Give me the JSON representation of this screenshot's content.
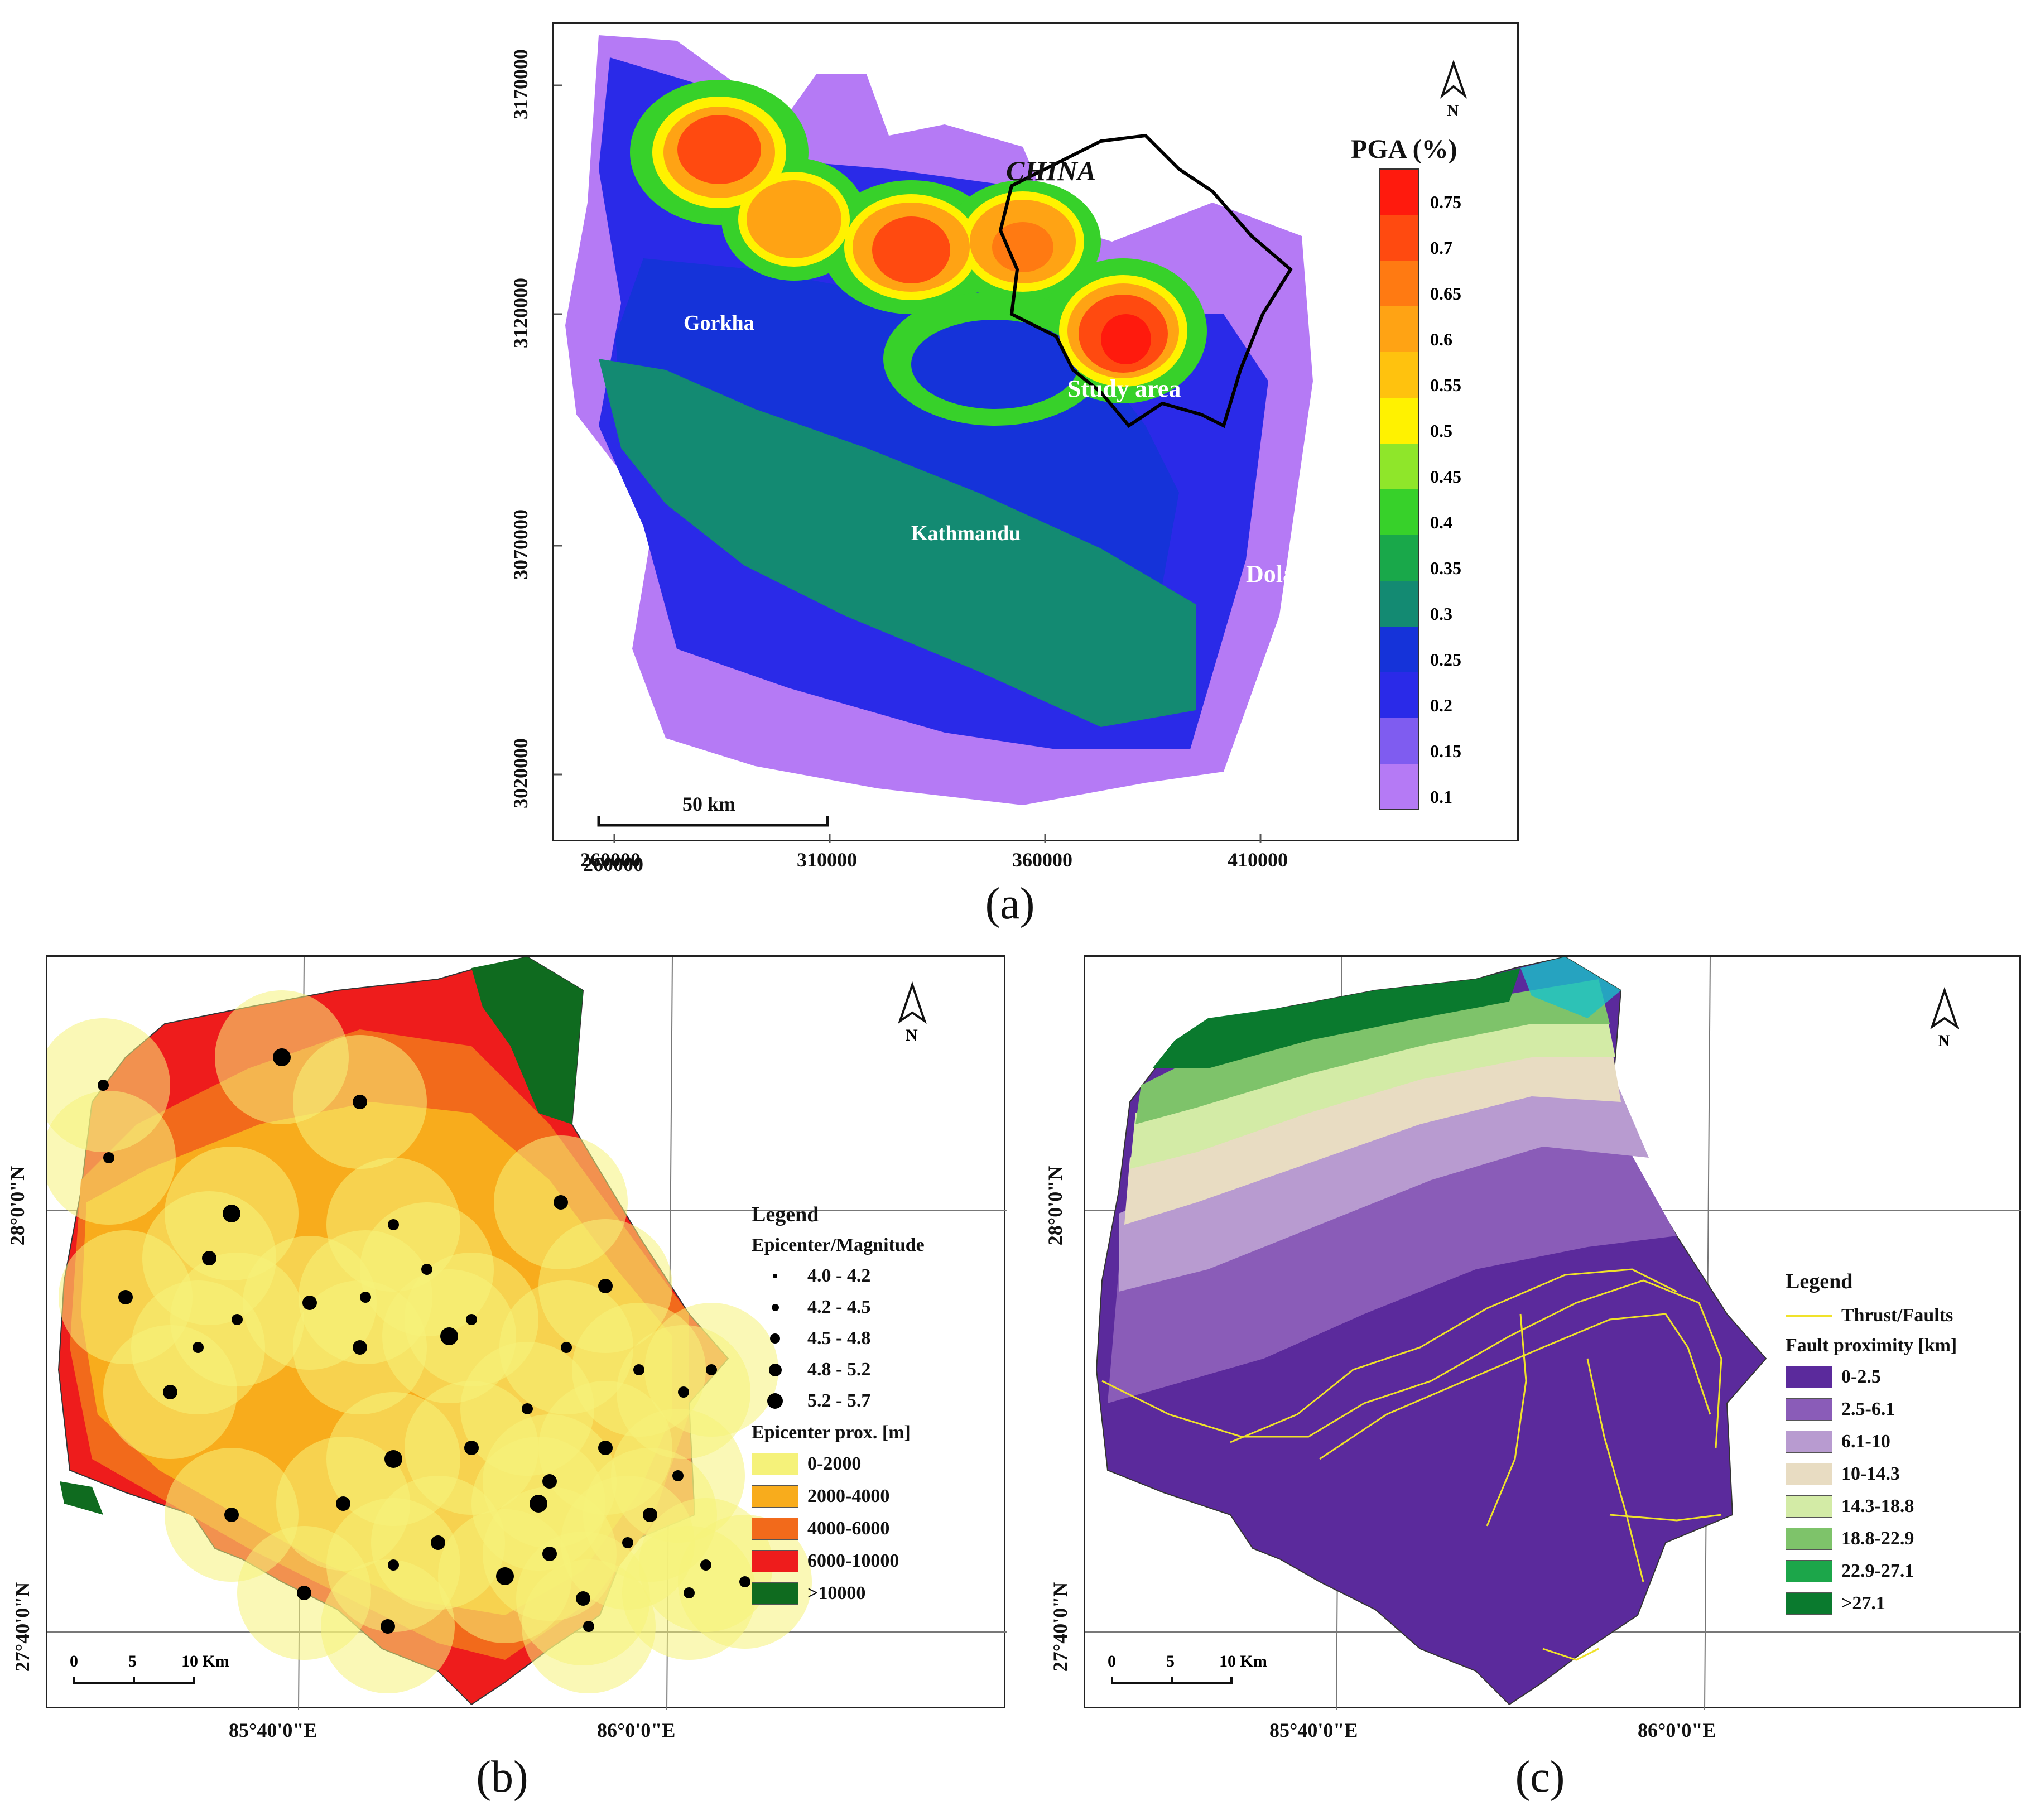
{
  "panel_a": {
    "caption": "(a)",
    "x_ticks": [
      "260000",
      "310000",
      "360000",
      "410000"
    ],
    "y_ticks": [
      "3170000",
      "3120000",
      "3070000",
      "3020000"
    ],
    "labels": {
      "china": "CHINA",
      "gorkha": "Gorkha",
      "study_area": "Study area",
      "kathmandu": "Kathmandu",
      "dolakha": "Dolakha"
    },
    "north": "N",
    "scale_bar": "50 km",
    "legend_title": "PGA (%)",
    "pga_values": [
      "0.75",
      "0.7",
      "0.65",
      "0.6",
      "0.55",
      "0.5",
      "0.45",
      "0.4",
      "0.35",
      "0.3",
      "0.25",
      "0.2",
      "0.15",
      "0.1"
    ],
    "pga_colors": [
      "#ff1a0d",
      "#ff4a10",
      "#ff7a12",
      "#ffa314",
      "#ffc20e",
      "#fff200",
      "#8fe62a",
      "#37d12a",
      "#19a84a",
      "#138a72",
      "#1533d9",
      "#2a2ae8",
      "#7f5cf0",
      "#b57af5"
    ]
  },
  "panel_b": {
    "caption": "(b)",
    "north": "N",
    "lat_labels": [
      "28°0'0\"N",
      "27°40'0\"N"
    ],
    "lon_labels": [
      "85°40'0\"E",
      "86°0'0\"E"
    ],
    "scale": [
      "0",
      "5",
      "10 Km"
    ],
    "legend": {
      "title": "Legend",
      "magnitude_title": "Epicenter/Magnitude",
      "magnitudes": [
        "4.0 - 4.2",
        "4.2 - 4.5",
        "4.5 - 4.8",
        "4.8 - 5.2",
        "5.2 - 5.7"
      ],
      "prox_title": "Epicenter prox. [m]",
      "proximity": [
        {
          "label": "0-2000",
          "color": "#f5f27a"
        },
        {
          "label": "2000-4000",
          "color": "#f8ac1c"
        },
        {
          "label": "4000-6000",
          "color": "#f26a1b"
        },
        {
          "label": "6000-10000",
          "color": "#ee1c1c"
        },
        {
          "label": ">10000",
          "color": "#0f6b1f"
        }
      ]
    }
  },
  "panel_c": {
    "caption": "(c)",
    "north": "N",
    "lat_labels": [
      "28°0'0\"N",
      "27°40'0\"N"
    ],
    "lon_labels": [
      "85°40'0\"E",
      "86°0'0\"E"
    ],
    "scale": [
      "0",
      "5",
      "10 Km"
    ],
    "legend": {
      "title": "Legend",
      "fault_label": "Thrust/Faults",
      "prox_title": "Fault proximity [km]",
      "proximity": [
        {
          "label": "0-2.5",
          "color": "#5b2a9c"
        },
        {
          "label": "2.5-6.1",
          "color": "#8a5cb8"
        },
        {
          "label": "6.1-10",
          "color": "#b89bd0"
        },
        {
          "label": "10-14.3",
          "color": "#e8dcc2"
        },
        {
          "label": "14.3-18.8",
          "color": "#d3eba6"
        },
        {
          "label": "18.8-22.9",
          "color": "#7ec36a"
        },
        {
          "label": "22.9-27.1",
          "color": "#1ca64a"
        },
        {
          "label": ">27.1",
          "color": "#0a7a2e"
        }
      ]
    }
  }
}
